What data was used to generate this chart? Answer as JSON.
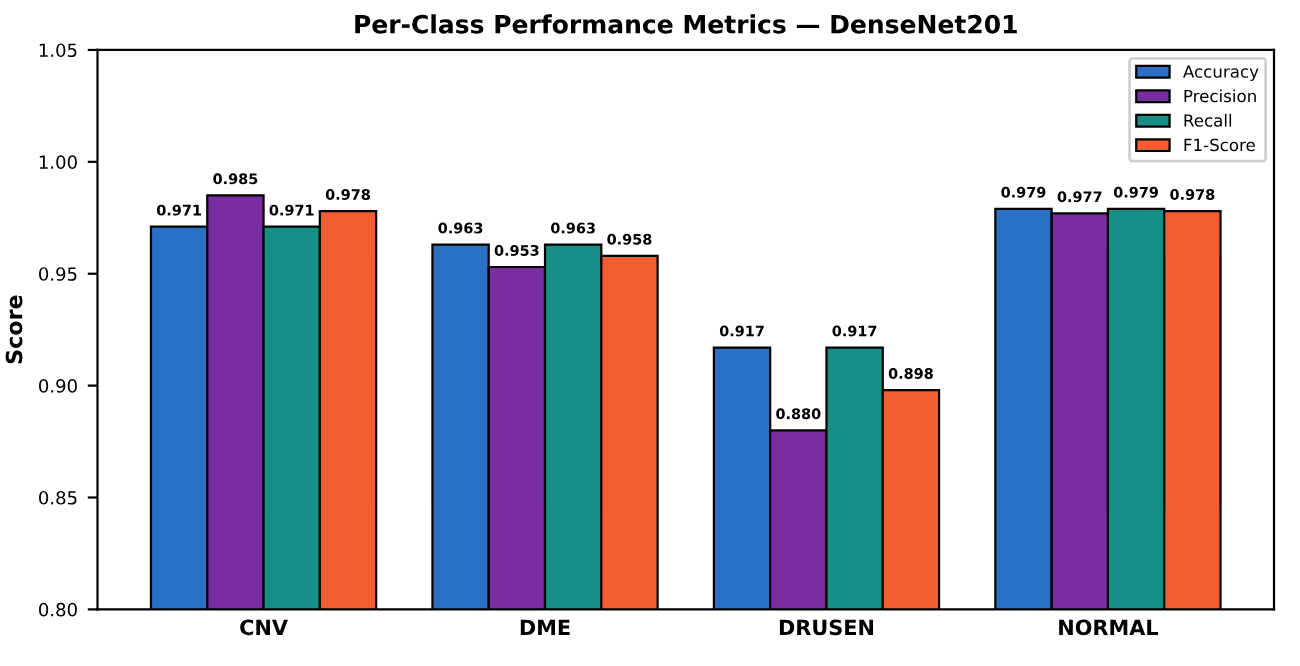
{
  "chart_data": {
    "type": "bar",
    "title": "Per-Class Performance Metrics — DenseNet201",
    "ylabel": "Score",
    "categories": [
      "CNV",
      "DME",
      "DRUSEN",
      "NORMAL"
    ],
    "series": [
      {
        "name": "Accuracy",
        "color": "#2a70c5",
        "values": [
          0.971,
          0.963,
          0.917,
          0.979
        ],
        "value_labels": [
          "0.971",
          "0.963",
          "0.917",
          "0.979"
        ]
      },
      {
        "name": "Precision",
        "color": "#782ea0",
        "values": [
          0.985,
          0.953,
          0.88,
          0.977
        ],
        "value_labels": [
          "0.985",
          "0.953",
          "0.880",
          "0.977"
        ]
      },
      {
        "name": "Recall",
        "color": "#168f86",
        "values": [
          0.971,
          0.963,
          0.917,
          0.979
        ],
        "value_labels": [
          "0.971",
          "0.963",
          "0.917",
          "0.979"
        ]
      },
      {
        "name": "F1-Score",
        "color": "#f45d30",
        "values": [
          0.978,
          0.958,
          0.898,
          0.978
        ],
        "value_labels": [
          "0.978",
          "0.958",
          "0.898",
          "0.978"
        ]
      }
    ],
    "ylim": [
      0.8,
      1.05
    ],
    "yticks": [
      {
        "value": 0.8,
        "label": "0.80"
      },
      {
        "value": 0.85,
        "label": "0.85"
      },
      {
        "value": 0.9,
        "label": "0.90"
      },
      {
        "value": 0.95,
        "label": "0.95"
      },
      {
        "value": 1.0,
        "label": "1.00"
      },
      {
        "value": 1.05,
        "label": "1.05"
      }
    ],
    "grid": false,
    "legend": "top right"
  }
}
